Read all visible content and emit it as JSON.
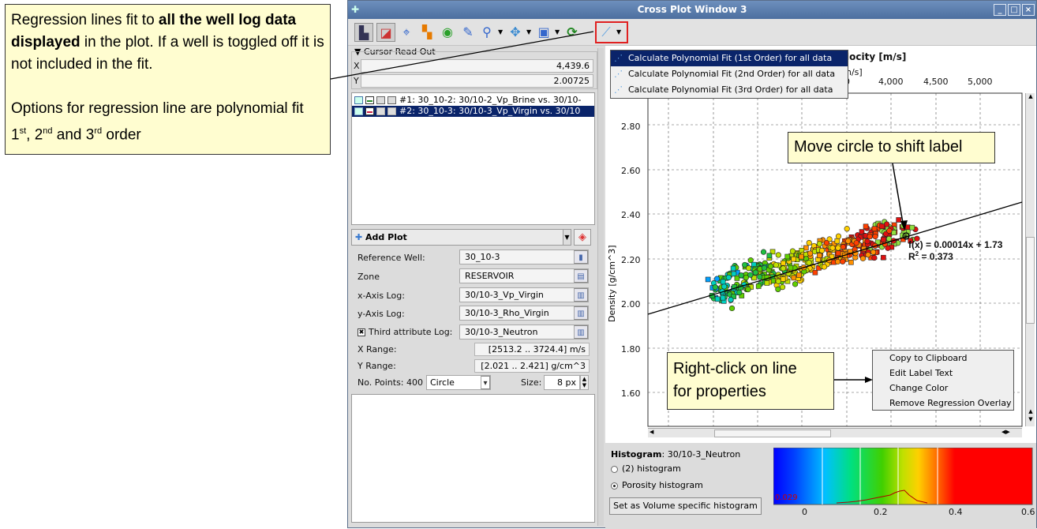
{
  "callouts": {
    "main_line1a": "Regression lines fit to ",
    "main_line1b": "all the well log data displayed",
    "main_line1c": " in the plot. If a well is toggled off it is not included in the fit.",
    "main_line2a": "Options for regression line are polynomial fit 1",
    "sup1": "st",
    "main_line2b": ", 2",
    "sup2": "nd",
    "main_line2c": " and 3",
    "sup3": "rd",
    "main_line2d": " order",
    "move_label": "Move circle to shift label",
    "rightclick_line1": "Right-click on line",
    "rightclick_line2": "for properties"
  },
  "window": {
    "title": "Cross Plot Window 3"
  },
  "toolbar": {
    "icons": [
      "layout-icon",
      "chart-icon",
      "crosshair-icon",
      "checker-icon",
      "volume-icon",
      "pen-icon",
      "zoom-icon",
      "pan-icon",
      "export-icon",
      "refresh-icon",
      "regression-icon"
    ]
  },
  "cursor_readout": {
    "title": "Cursor Read Out",
    "x_label": "X",
    "x_value": "4,439.6",
    "y_label": "Y",
    "y_value": "2.00725"
  },
  "wells": [
    {
      "text": "#1: 30_10-2: 30/10-2_Vp_Brine vs. 30/10-",
      "selected": false,
      "color": "#2a8a2a"
    },
    {
      "text": "#2: 30_10-3: 30/10-3_Vp_Virgin vs. 30/10",
      "selected": true,
      "color": "#cc2244"
    }
  ],
  "add_plot": {
    "title": "Add Plot",
    "reference_well_label": "Reference Well:",
    "reference_well": "30_10-3",
    "zone_label": "Zone",
    "zone": "RESERVOIR",
    "x_log_label": "x-Axis Log:",
    "x_log": "30/10-3_Vp_Virgin",
    "y_log_label": "y-Axis Log:",
    "y_log": "30/10-3_Rho_Virgin",
    "third_label": "Third attribute Log:",
    "third": "30/10-3_Neutron",
    "x_range_label": "X Range:",
    "x_range": "[2513.2 .. 3724.4] m/s",
    "y_range_label": "Y Range:",
    "y_range": "[2.021 .. 2.421] g/cm^3",
    "points_label": "No. Points: 400",
    "marker": "Circle",
    "size_label": "Size:",
    "size": "8 px"
  },
  "plot": {
    "x_axis_title": "locity [m/s]",
    "x_unit_partial": "n/s]",
    "x_tick_partial": "0",
    "x_ticks": [
      "4,000",
      "4,500",
      "5,000"
    ],
    "y_axis_title": "Density [g/cm^3]",
    "y_ticks": [
      "2.80",
      "2.60",
      "2.40",
      "2.20",
      "2.00",
      "1.80",
      "1.60"
    ],
    "equation": "f(x) = 0.00014x + 1.73",
    "r2_prefix": "R",
    "r2_sup": "2",
    "r2_suffix": " = 0.373"
  },
  "regression_menu": {
    "items": [
      "Calculate Polynomial Fit (1st Order) for all data",
      "Calculate Polynomial Fit (2nd Order) for all data",
      "Calculate Polynomial Fit (3rd Order) for all data"
    ]
  },
  "context_menu": {
    "items": [
      "Copy to Clipboard",
      "Edit Label Text",
      "Change Color",
      "Remove Regression Overlay"
    ]
  },
  "histogram": {
    "title_bold": "Histogram",
    "title_rest": ": 30/10-3_Neutron",
    "option1": "(2) histogram",
    "option2": "Porosity histogram",
    "button": "Set as Volume specific histogram",
    "x_ticks": [
      "0",
      "0.2",
      "0.4",
      "0.6"
    ],
    "value_label": "0.029"
  },
  "colors": {
    "callout_bg": "#fffdd0",
    "title_bar": "#5a7cae",
    "selection": "#0a246a",
    "highlight_box": "#e02020"
  }
}
